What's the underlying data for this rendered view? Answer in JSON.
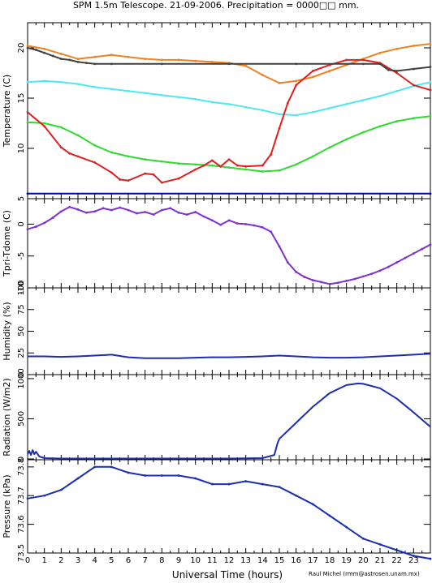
{
  "title": "SPM 1.5m Telescope. 21-09-2006. Precipitation = 0000□□ mm.",
  "xlabel": "Universal Time (hours)",
  "credit": "Raul Michel (rmm@astrosen.unam.mx)",
  "xticks": [
    "0",
    "1",
    "2",
    "3",
    "4",
    "5",
    "6",
    "7",
    "8",
    "9",
    "10",
    "11",
    "12",
    "13",
    "14",
    "15",
    "16",
    "17",
    "18",
    "19",
    "20",
    "21",
    "22",
    "23"
  ],
  "chart_data": [
    {
      "type": "scatter",
      "ylabel": "Temperature (C)",
      "ylim": [
        5,
        22.5
      ],
      "yticks": [
        {
          "v": 5,
          "label": "5"
        },
        {
          "v": 10,
          "label": "10"
        },
        {
          "v": 15,
          "label": "15"
        },
        {
          "v": 20,
          "label": "20"
        }
      ],
      "series": [
        {
          "color": "#f08020",
          "x": [
            0,
            1,
            2,
            3,
            4,
            5,
            6,
            7,
            8,
            9,
            10,
            11,
            12,
            13,
            14,
            15,
            16,
            17,
            18,
            19,
            20,
            21,
            22,
            23,
            24
          ],
          "y": [
            20.2,
            19.9,
            19.4,
            18.9,
            19.1,
            19.3,
            19.1,
            18.9,
            18.8,
            18.8,
            18.7,
            18.6,
            18.5,
            18.2,
            17.3,
            16.5,
            16.7,
            17.1,
            17.7,
            18.3,
            18.9,
            19.5,
            19.9,
            20.2,
            20.4
          ]
        },
        {
          "color": "#50e8f0",
          "x": [
            0,
            1,
            2,
            3,
            4,
            5,
            6,
            7,
            8,
            9,
            10,
            11,
            12,
            13,
            14,
            15,
            16,
            17,
            18,
            19,
            20,
            21,
            22,
            23,
            24
          ],
          "y": [
            16.6,
            16.7,
            16.6,
            16.4,
            16.1,
            15.9,
            15.7,
            15.5,
            15.3,
            15.1,
            14.9,
            14.6,
            14.4,
            14.1,
            13.8,
            13.4,
            13.3,
            13.6,
            14.0,
            14.4,
            14.8,
            15.2,
            15.7,
            16.2,
            16.6
          ]
        },
        {
          "color": "#30d830",
          "x": [
            0,
            1,
            2,
            3,
            4,
            5,
            6,
            7,
            8,
            9,
            10,
            11,
            12,
            13,
            14,
            15,
            16,
            17,
            18,
            19,
            20,
            21,
            22,
            23,
            24
          ],
          "y": [
            12.6,
            12.5,
            12.1,
            11.3,
            10.3,
            9.6,
            9.2,
            8.9,
            8.7,
            8.5,
            8.4,
            8.3,
            8.1,
            7.9,
            7.7,
            7.8,
            8.4,
            9.2,
            10.1,
            10.9,
            11.6,
            12.2,
            12.7,
            13.0,
            13.2
          ]
        },
        {
          "color": "#e02020",
          "x": [
            0,
            1,
            2,
            2.5,
            3,
            4,
            5,
            5.5,
            6,
            7,
            7.5,
            8,
            9,
            10,
            10.5,
            11,
            11.5,
            12,
            12.5,
            13,
            14,
            14.5,
            15,
            15.5,
            16,
            17,
            18,
            19,
            20,
            21,
            22,
            23,
            24
          ],
          "y": [
            13.6,
            12.2,
            10.1,
            9.5,
            9.2,
            8.6,
            7.6,
            6.9,
            6.8,
            7.5,
            7.4,
            6.6,
            7.0,
            7.9,
            8.3,
            8.8,
            8.2,
            8.9,
            8.3,
            8.2,
            8.3,
            9.4,
            12.0,
            14.5,
            16.3,
            17.7,
            18.3,
            18.8,
            18.8,
            18.5,
            17.5,
            16.3,
            15.8
          ]
        },
        {
          "color": "#404040",
          "x": [
            0,
            0.5,
            1,
            1.5,
            2,
            2.5,
            3,
            3.5,
            4,
            5,
            8,
            12,
            16,
            20,
            21,
            21.5,
            22,
            23,
            24
          ],
          "y": [
            20.0,
            19.8,
            19.5,
            19.2,
            18.9,
            18.8,
            18.6,
            18.5,
            18.4,
            18.4,
            18.4,
            18.4,
            18.4,
            18.4,
            18.4,
            17.8,
            17.7,
            17.9,
            18.1
          ]
        },
        {
          "color": "#0000c0",
          "x": [
            0,
            24
          ],
          "y": [
            5.5,
            5.5
          ]
        }
      ]
    },
    {
      "type": "scatter",
      "ylabel": "Tpri-Tdome (C)",
      "ylim": [
        -10,
        4
      ],
      "yticks": [
        {
          "v": -10,
          "label": "-10"
        },
        {
          "v": -5,
          "label": "-5"
        },
        {
          "v": 0,
          "label": "0"
        }
      ],
      "series": [
        {
          "color": "#8030d0",
          "x": [
            0,
            0.5,
            1,
            1.5,
            2,
            2.5,
            3,
            3.5,
            4,
            4.5,
            5,
            5.5,
            6,
            6.5,
            7,
            7.5,
            8,
            8.5,
            9,
            9.5,
            10,
            10.5,
            11,
            11.5,
            12,
            12.5,
            13,
            13.5,
            14,
            14.5,
            15,
            15.5,
            16,
            16.5,
            17,
            17.5,
            18,
            18.5,
            19,
            19.5,
            20,
            20.5,
            21,
            21.5,
            22,
            22.5,
            23,
            23.5,
            24
          ],
          "y": [
            -0.8,
            -0.4,
            0.2,
            1.0,
            2.0,
            2.7,
            2.3,
            1.8,
            2.0,
            2.5,
            2.2,
            2.6,
            2.2,
            1.7,
            1.9,
            1.5,
            2.2,
            2.5,
            1.8,
            1.5,
            1.9,
            1.2,
            0.6,
            -0.1,
            0.6,
            0.1,
            0.0,
            -0.2,
            -0.5,
            -1.2,
            -3.5,
            -6.0,
            -7.5,
            -8.3,
            -8.8,
            -9.1,
            -9.4,
            -9.2,
            -8.9,
            -8.6,
            -8.2,
            -7.8,
            -7.3,
            -6.7,
            -6.0,
            -5.3,
            -4.6,
            -3.9,
            -3.2
          ]
        }
      ]
    },
    {
      "type": "line",
      "ylabel": "Humidity (%)",
      "ylim": [
        0,
        100
      ],
      "yticks": [
        {
          "v": 0,
          "label": "0"
        },
        {
          "v": 25,
          "label": "25"
        },
        {
          "v": 50,
          "label": "50"
        },
        {
          "v": 75,
          "label": "75"
        },
        {
          "v": 100,
          "label": "100"
        }
      ],
      "series": [
        {
          "color": "#1a2eb0",
          "x": [
            0,
            1,
            2,
            3,
            4,
            5,
            6,
            7,
            8,
            9,
            10,
            11,
            12,
            13,
            14,
            15,
            16,
            17,
            18,
            19,
            20,
            21,
            22,
            23,
            24
          ],
          "y": [
            21,
            21,
            20.5,
            21,
            22,
            23,
            20,
            19,
            19,
            19,
            19.5,
            20,
            20,
            20.5,
            21,
            22,
            21,
            20,
            19.5,
            19.5,
            20,
            21,
            22,
            23,
            24
          ]
        }
      ]
    },
    {
      "type": "line",
      "ylabel": "Radiation (W/m2)",
      "ylim": [
        -10,
        1050
      ],
      "yticks": [
        {
          "v": 0,
          "label": "0"
        },
        {
          "v": 500,
          "label": "500"
        },
        {
          "v": 1000,
          "label": "1000"
        }
      ],
      "series": [
        {
          "color": "#1a2eb0",
          "x": [
            0,
            0.1,
            0.2,
            0.3,
            0.4,
            0.5,
            0.7,
            1,
            2,
            4,
            6,
            8,
            10,
            12,
            14,
            14.7,
            14.9,
            15,
            16,
            17,
            18,
            19,
            19.7,
            20,
            21,
            22,
            23,
            24
          ],
          "y": [
            60,
            100,
            50,
            110,
            60,
            90,
            30,
            10,
            5,
            5,
            5,
            5,
            5,
            5,
            10,
            50,
            200,
            250,
            450,
            650,
            820,
            920,
            940,
            935,
            880,
            750,
            580,
            400
          ]
        }
      ]
    },
    {
      "type": "scatter",
      "ylabel": "Pressure (kPa)",
      "ylim": [
        73.5,
        73.825
      ],
      "yticks": [
        {
          "v": 73.5,
          "label": "73.5"
        },
        {
          "v": 73.6,
          "label": "73.6"
        },
        {
          "v": 73.7,
          "label": "73.7"
        },
        {
          "v": 73.8,
          "label": "73.8"
        }
      ],
      "series": [
        {
          "color": "#1a2eb0",
          "x": [
            0,
            1,
            2,
            3,
            4,
            5,
            6,
            7,
            8,
            9,
            10,
            11,
            12,
            13,
            14,
            15,
            16,
            17,
            18,
            19,
            20,
            21,
            22,
            23,
            24
          ],
          "y": [
            73.69,
            73.7,
            73.72,
            73.76,
            73.8,
            73.8,
            73.78,
            73.77,
            73.77,
            73.77,
            73.76,
            73.74,
            73.74,
            73.75,
            73.74,
            73.73,
            73.7,
            73.67,
            73.63,
            73.59,
            73.55,
            73.53,
            73.51,
            73.49,
            73.48
          ]
        }
      ]
    }
  ]
}
